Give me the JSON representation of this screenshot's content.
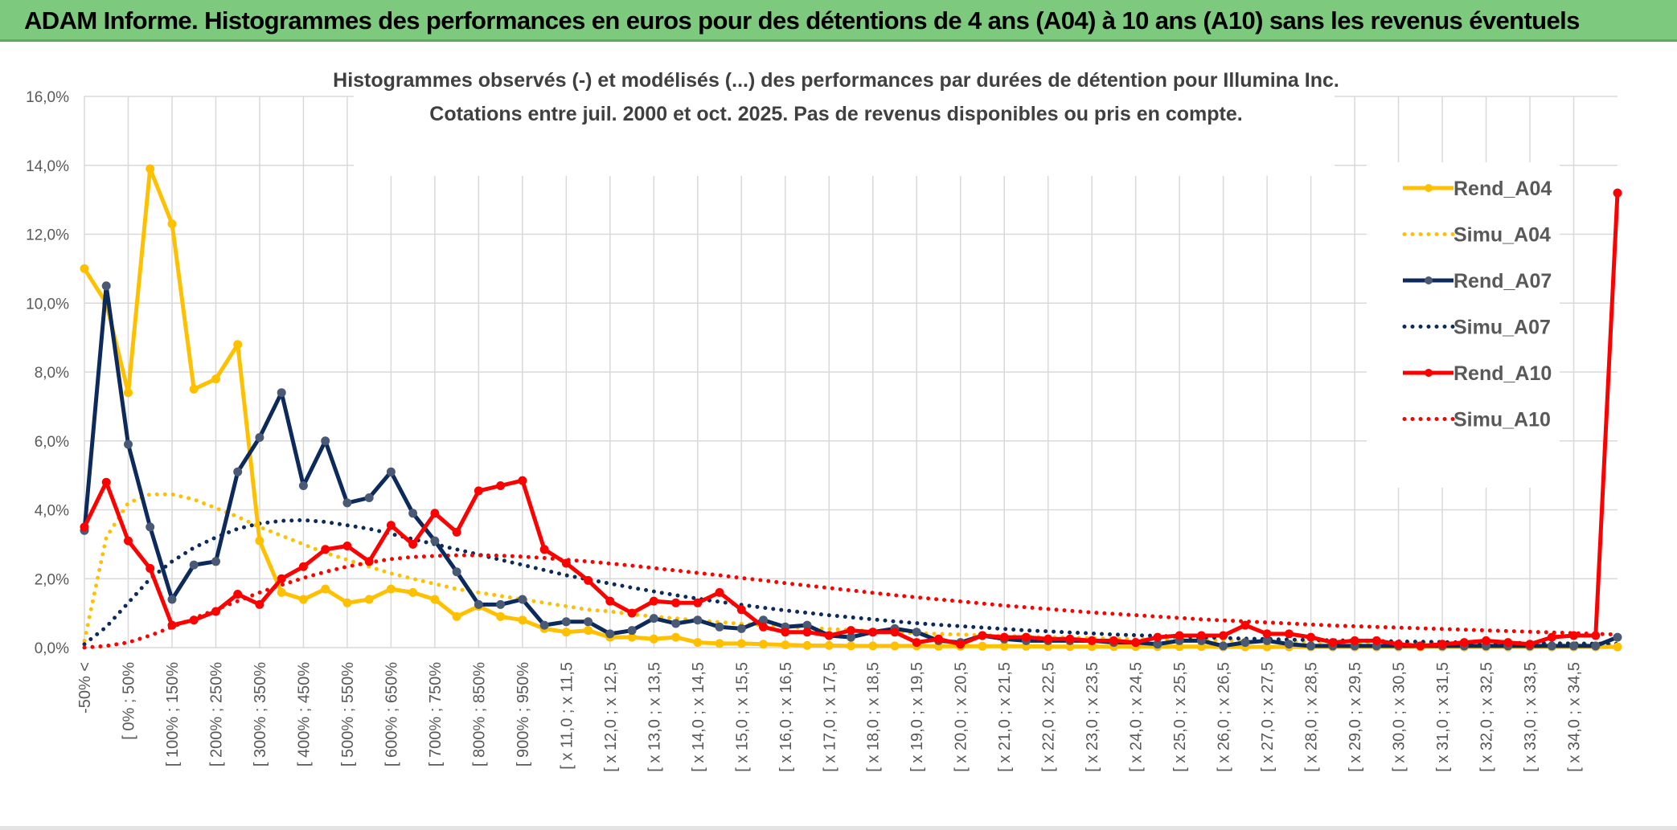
{
  "header": {
    "title": "ADAM Informe. Histogrammes des performances en euros pour des détentions de 4 ans (A04) à 10 ans (A10) sans les revenus éventuels"
  },
  "colors": {
    "banner": "#7dc97e",
    "rend_a04": "#ffc000",
    "rend_a07": "#0c2a5c",
    "rend_a07_marker": "#4a5a75",
    "rend_a10": "#ff0000",
    "grid": "#d9d9d9"
  },
  "chart_data": {
    "type": "line",
    "title": "Histogrammes observés (-) et modélisés (...) des performances par durées de détention pour Illumina Inc.",
    "subtitle": "Cotations entre juil. 2000 et oct. 2025. Pas de revenus disponibles ou pris en compte.",
    "ylim": [
      0,
      16
    ],
    "yticks": [
      "0,0%",
      "2,0%",
      "4,0%",
      "6,0%",
      "8,0%",
      "10,0%",
      "12,0%",
      "14,0%",
      "16,0%"
    ],
    "xtick_labels": [
      "-50% <",
      "[ 0% ; 50%",
      "[ 100% ; 150%",
      "[ 200% ; 250%",
      "[ 300% ; 350%",
      "[ 400% ; 450%",
      "[ 500% ; 550%",
      "[ 600% ; 650%",
      "[ 700% ; 750%",
      "[ 800% ; 850%",
      "[ 900% ; 950%",
      "[ x 11,0 ; x 11,5",
      "[ x 12,0 ; x 12,5",
      "[ x 13,0 ; x 13,5",
      "[ x 14,0 ; x 14,5",
      "[ x 15,0 ; x 15,5",
      "[ x 16,0 ; x 16,5",
      "[ x 17,0 ; x 17,5",
      "[ x 18,0 ; x 18,5",
      "[ x 19,0 ; x 19,5",
      "[ x 20,0 ; x 20,5",
      "[ x 21,0 ; x 21,5",
      "[ x 22,0 ; x 22,5",
      "[ x 23,0 ; x 23,5",
      "[ x 24,0 ; x 24,5",
      "[ x 25,0 ; x 25,5",
      "[ x 26,0 ; x 26,5",
      "[ x 27,0 ; x 27,5",
      "[ x 28,0 ; x 28,5",
      "[ x 29,0 ; x 29,5",
      "[ x 30,0 ; x 30,5",
      "[ x 31,0 ; x 31,5",
      "[ x 32,0 ; x 32,5",
      "[ x 33,0 ; x 33,5",
      "[ x 34,0 ; x 34,5"
    ],
    "n_categories": 71,
    "legend_position": "right",
    "series": [
      {
        "name": "Rend_A04",
        "style": "solid",
        "color": "#ffc000",
        "values": [
          11.0,
          10.0,
          7.4,
          13.9,
          12.3,
          7.5,
          7.8,
          8.8,
          3.1,
          1.6,
          1.4,
          1.7,
          1.3,
          1.4,
          1.7,
          1.6,
          1.4,
          0.9,
          1.2,
          0.9,
          0.8,
          0.55,
          0.45,
          0.5,
          0.3,
          0.3,
          0.25,
          0.3,
          0.15,
          0.12,
          0.12,
          0.1,
          0.08,
          0.06,
          0.06,
          0.05,
          0.05,
          0.05,
          0.05,
          0.04,
          0.04,
          0.04,
          0.04,
          0.04,
          0.03,
          0.03,
          0.03,
          0.03,
          0.03,
          0.03,
          0.03,
          0.03,
          0.02,
          0.02,
          0.02,
          0.02,
          0.02,
          0.02,
          0.02,
          0.02,
          0.02,
          0.02,
          0.02,
          0.02,
          0.02,
          0.02,
          0.02,
          0.02,
          0.02,
          0.02,
          0.02
        ]
      },
      {
        "name": "Simu_A04",
        "style": "dotted",
        "color": "#ffc000",
        "values": [
          0.2,
          3.2,
          4.2,
          4.45,
          4.45,
          4.3,
          4.05,
          3.8,
          3.5,
          3.25,
          3.0,
          2.75,
          2.55,
          2.35,
          2.15,
          2.0,
          1.85,
          1.7,
          1.6,
          1.5,
          1.4,
          1.3,
          1.2,
          1.1,
          1.05,
          0.97,
          0.9,
          0.85,
          0.79,
          0.74,
          0.69,
          0.65,
          0.61,
          0.57,
          0.54,
          0.51,
          0.48,
          0.45,
          0.42,
          0.4,
          0.38,
          0.36,
          0.34,
          0.32,
          0.3,
          0.29,
          0.27,
          0.26,
          0.25,
          0.24,
          0.23,
          0.22,
          0.21,
          0.2,
          0.19,
          0.18,
          0.17,
          0.16,
          0.155,
          0.15,
          0.14,
          0.135,
          0.13,
          0.125,
          0.12,
          0.115,
          0.11,
          0.105,
          0.1,
          0.095,
          0.09
        ]
      },
      {
        "name": "Rend_A07",
        "style": "solid",
        "color": "#0c2a5c",
        "values": [
          3.4,
          10.5,
          5.9,
          3.5,
          1.4,
          2.4,
          2.5,
          5.1,
          6.1,
          7.4,
          4.7,
          6.0,
          4.2,
          4.35,
          5.1,
          3.9,
          3.1,
          2.2,
          1.25,
          1.25,
          1.4,
          0.65,
          0.75,
          0.75,
          0.4,
          0.5,
          0.85,
          0.7,
          0.8,
          0.6,
          0.55,
          0.8,
          0.6,
          0.65,
          0.35,
          0.3,
          0.45,
          0.55,
          0.45,
          0.2,
          0.15,
          0.35,
          0.25,
          0.2,
          0.2,
          0.2,
          0.2,
          0.15,
          0.15,
          0.1,
          0.2,
          0.2,
          0.05,
          0.15,
          0.2,
          0.1,
          0.05,
          0.05,
          0.05,
          0.05,
          0.05,
          0.05,
          0.05,
          0.05,
          0.05,
          0.05,
          0.05,
          0.05,
          0.05,
          0.05,
          0.3
        ]
      },
      {
        "name": "Simu_A07",
        "style": "dotted",
        "color": "#0c2a5c",
        "values": [
          0.1,
          0.6,
          1.3,
          2.0,
          2.5,
          2.9,
          3.2,
          3.45,
          3.6,
          3.68,
          3.7,
          3.65,
          3.55,
          3.45,
          3.3,
          3.15,
          3.0,
          2.85,
          2.7,
          2.55,
          2.4,
          2.25,
          2.1,
          1.98,
          1.86,
          1.74,
          1.63,
          1.52,
          1.42,
          1.33,
          1.24,
          1.16,
          1.08,
          1.01,
          0.94,
          0.88,
          0.82,
          0.76,
          0.71,
          0.66,
          0.62,
          0.58,
          0.54,
          0.5,
          0.47,
          0.44,
          0.41,
          0.38,
          0.36,
          0.34,
          0.32,
          0.3,
          0.28,
          0.26,
          0.25,
          0.23,
          0.22,
          0.21,
          0.2,
          0.19,
          0.18,
          0.17,
          0.16,
          0.15,
          0.14,
          0.135,
          0.13,
          0.125,
          0.12,
          0.115,
          0.11
        ]
      },
      {
        "name": "Rend_A10",
        "style": "solid",
        "color": "#ff0000",
        "values": [
          3.5,
          4.8,
          3.1,
          2.3,
          0.65,
          0.8,
          1.05,
          1.55,
          1.25,
          2.0,
          2.35,
          2.85,
          2.95,
          2.5,
          3.55,
          3.0,
          3.9,
          3.35,
          4.55,
          4.7,
          4.85,
          2.85,
          2.45,
          1.95,
          1.35,
          1.0,
          1.35,
          1.3,
          1.3,
          1.6,
          1.1,
          0.6,
          0.45,
          0.45,
          0.35,
          0.5,
          0.45,
          0.45,
          0.15,
          0.25,
          0.1,
          0.35,
          0.3,
          0.3,
          0.25,
          0.25,
          0.2,
          0.2,
          0.15,
          0.3,
          0.35,
          0.35,
          0.35,
          0.65,
          0.4,
          0.4,
          0.3,
          0.15,
          0.2,
          0.2,
          0.1,
          0.05,
          0.1,
          0.15,
          0.2,
          0.15,
          0.1,
          0.3,
          0.35,
          0.35,
          13.2
        ]
      },
      {
        "name": "Simu_A10",
        "style": "dotted",
        "color": "#ff0000",
        "values": [
          0.0,
          0.05,
          0.15,
          0.35,
          0.6,
          0.85,
          1.1,
          1.35,
          1.6,
          1.82,
          2.02,
          2.2,
          2.35,
          2.47,
          2.57,
          2.63,
          2.66,
          2.68,
          2.68,
          2.67,
          2.64,
          2.6,
          2.55,
          2.5,
          2.44,
          2.38,
          2.31,
          2.24,
          2.17,
          2.1,
          2.02,
          1.95,
          1.87,
          1.8,
          1.73,
          1.66,
          1.59,
          1.52,
          1.46,
          1.4,
          1.34,
          1.28,
          1.22,
          1.17,
          1.12,
          1.07,
          1.02,
          0.98,
          0.94,
          0.9,
          0.86,
          0.82,
          0.79,
          0.76,
          0.73,
          0.7,
          0.67,
          0.64,
          0.62,
          0.6,
          0.58,
          0.56,
          0.54,
          0.52,
          0.5,
          0.48,
          0.46,
          0.44,
          0.42,
          0.4,
          0.38
        ]
      }
    ]
  }
}
